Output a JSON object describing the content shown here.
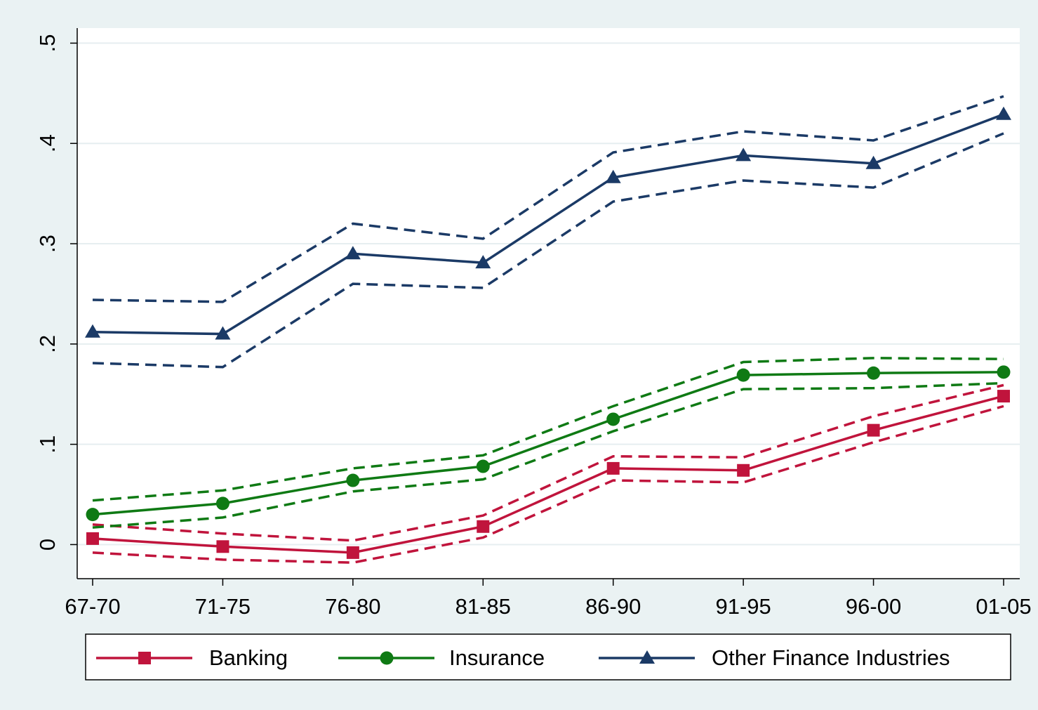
{
  "chart_data": {
    "type": "line",
    "categories": [
      "67-70",
      "71-75",
      "76-80",
      "81-85",
      "86-90",
      "91-95",
      "96-00",
      "01-05"
    ],
    "ylim": [
      -0.034,
      0.515
    ],
    "yticks": [
      0,
      {
        "value": 0.1,
        "label": ".1"
      },
      {
        "value": 0.2,
        "label": ".2"
      },
      {
        "value": 0.3,
        "label": ".3"
      },
      {
        "value": 0.4,
        "label": ".4"
      },
      {
        "value": 0.5,
        "label": ".5"
      }
    ],
    "grid": true,
    "series": [
      {
        "name": "Banking",
        "color": "#c0143c",
        "marker": "square",
        "values": [
          0.006,
          -0.002,
          -0.008,
          0.018,
          0.076,
          0.074,
          0.114,
          0.148
        ],
        "ci_upper": [
          0.02,
          0.011,
          0.004,
          0.029,
          0.088,
          0.087,
          0.128,
          0.159
        ],
        "ci_lower": [
          -0.008,
          -0.015,
          -0.018,
          0.007,
          0.064,
          0.062,
          0.102,
          0.138
        ]
      },
      {
        "name": "Insurance",
        "color": "#0f7a14",
        "marker": "circle",
        "values": [
          0.03,
          0.041,
          0.064,
          0.078,
          0.125,
          0.169,
          0.171,
          0.172
        ],
        "ci_upper": [
          0.044,
          0.054,
          0.076,
          0.089,
          0.138,
          0.182,
          0.186,
          0.185
        ],
        "ci_lower": [
          0.017,
          0.027,
          0.053,
          0.065,
          0.113,
          0.155,
          0.156,
          0.161
        ]
      },
      {
        "name": "Other Finance Industries",
        "color": "#1b3a66",
        "marker": "triangle",
        "values": [
          0.212,
          0.21,
          0.29,
          0.281,
          0.366,
          0.388,
          0.38,
          0.429
        ],
        "ci_upper": [
          0.244,
          0.242,
          0.32,
          0.305,
          0.391,
          0.412,
          0.403,
          0.447
        ],
        "ci_lower": [
          0.181,
          0.177,
          0.26,
          0.256,
          0.342,
          0.363,
          0.356,
          0.41
        ]
      }
    ]
  }
}
